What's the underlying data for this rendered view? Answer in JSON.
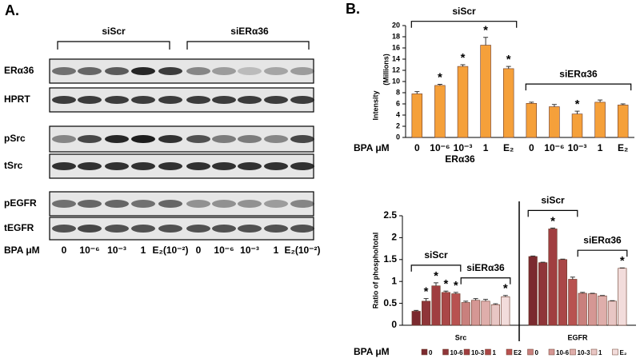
{
  "panel_a": {
    "label": "A.",
    "groups": [
      "siScr",
      "siERα36"
    ],
    "rows": [
      "ERα36",
      "HPRT",
      "pSrc",
      "tSrc",
      "pEGFR",
      "tEGFR"
    ],
    "dose_label": "BPA μM",
    "doses": [
      "0",
      "10⁻⁶",
      "10⁻³",
      "1",
      "E₂(10⁻²)",
      "0",
      "10⁻⁶",
      "10⁻³",
      "1",
      "E₂(10⁻²)"
    ]
  },
  "panel_b_label": "B.",
  "chart_data": [
    {
      "type": "bar",
      "ylabel": "Intensity",
      "unit_label": "(Millions)",
      "row_label": "BPA μM",
      "xlabel": "ERα36",
      "categories": [
        "0",
        "10⁻⁶",
        "10⁻³",
        "1",
        "E₂",
        "0",
        "10⁻⁶",
        "10⁻³",
        "1",
        "E₂"
      ],
      "values": [
        7.8,
        9.3,
        12.7,
        16.5,
        12.3,
        6.1,
        5.5,
        4.2,
        6.3,
        5.8
      ],
      "errors": [
        0.4,
        0.2,
        0.3,
        1.4,
        0.4,
        0.2,
        0.4,
        0.5,
        0.4,
        0.2
      ],
      "markers": [
        null,
        "*",
        "*",
        "*",
        "*",
        null,
        null,
        "*",
        null,
        null
      ],
      "groups": [
        {
          "label": "siScr",
          "span": [
            0,
            4
          ]
        },
        {
          "label": "siERα36",
          "span": [
            5,
            9
          ]
        }
      ],
      "color": "#f5a03a",
      "ylim": [
        0,
        20
      ],
      "yticks": [
        0,
        2,
        4,
        6,
        8,
        10,
        12,
        14,
        16,
        18,
        20
      ]
    },
    {
      "type": "grouped_bar",
      "ylabel": "Ratio of phospho/total",
      "legend_title": "BPA μM",
      "categories": [
        "Src",
        "EGFR"
      ],
      "series": [
        {
          "name": "0",
          "color": "#7b2a2f",
          "values": [
            0.32,
            1.57
          ],
          "errors": [
            0.02,
            0.01
          ],
          "markers": [
            null,
            null
          ]
        },
        {
          "name": "10-6",
          "color": "#8f3539",
          "values": [
            0.55,
            1.43
          ],
          "errors": [
            0.06,
            0.01
          ],
          "markers": [
            "*",
            null
          ]
        },
        {
          "name": "10-3",
          "color": "#a03e40",
          "values": [
            0.9,
            2.2
          ],
          "errors": [
            0.07,
            0.02
          ],
          "markers": [
            "*",
            "*"
          ]
        },
        {
          "name": "1",
          "color": "#aa4747",
          "values": [
            0.75,
            1.5
          ],
          "errors": [
            0.03,
            0.01
          ],
          "markers": [
            "*",
            null
          ]
        },
        {
          "name": "E2",
          "color": "#b85250",
          "values": [
            0.72,
            1.05
          ],
          "errors": [
            0.03,
            0.05
          ],
          "markers": [
            "*",
            null
          ]
        },
        {
          "name": "0",
          "color": "#c9807d",
          "values": [
            0.52,
            0.73
          ],
          "errors": [
            0.03,
            0.02
          ],
          "markers": [
            null,
            null
          ]
        },
        {
          "name": "10-6",
          "color": "#d59794",
          "values": [
            0.57,
            0.72
          ],
          "errors": [
            0.04,
            0.01
          ],
          "markers": [
            null,
            null
          ]
        },
        {
          "name": "10-3",
          "color": "#dfaeab",
          "values": [
            0.55,
            0.67
          ],
          "errors": [
            0.04,
            0.01
          ],
          "markers": [
            null,
            null
          ]
        },
        {
          "name": "1",
          "color": "#e8c6c4",
          "values": [
            0.47,
            0.55
          ],
          "errors": [
            0.02,
            0.01
          ],
          "markers": [
            null,
            null
          ]
        },
        {
          "name": "E₂",
          "color": "#f2dcdb",
          "values": [
            0.65,
            1.3
          ],
          "errors": [
            0.03,
            0.01
          ],
          "markers": [
            "*",
            "*"
          ]
        }
      ],
      "groups": [
        {
          "label": "siScr",
          "span": [
            0,
            4
          ]
        },
        {
          "label": "siERα36",
          "span": [
            5,
            9
          ]
        }
      ],
      "ylim": [
        0,
        2.5
      ],
      "yticks": [
        0,
        0.5,
        1,
        1.5,
        2,
        2.5
      ]
    }
  ]
}
